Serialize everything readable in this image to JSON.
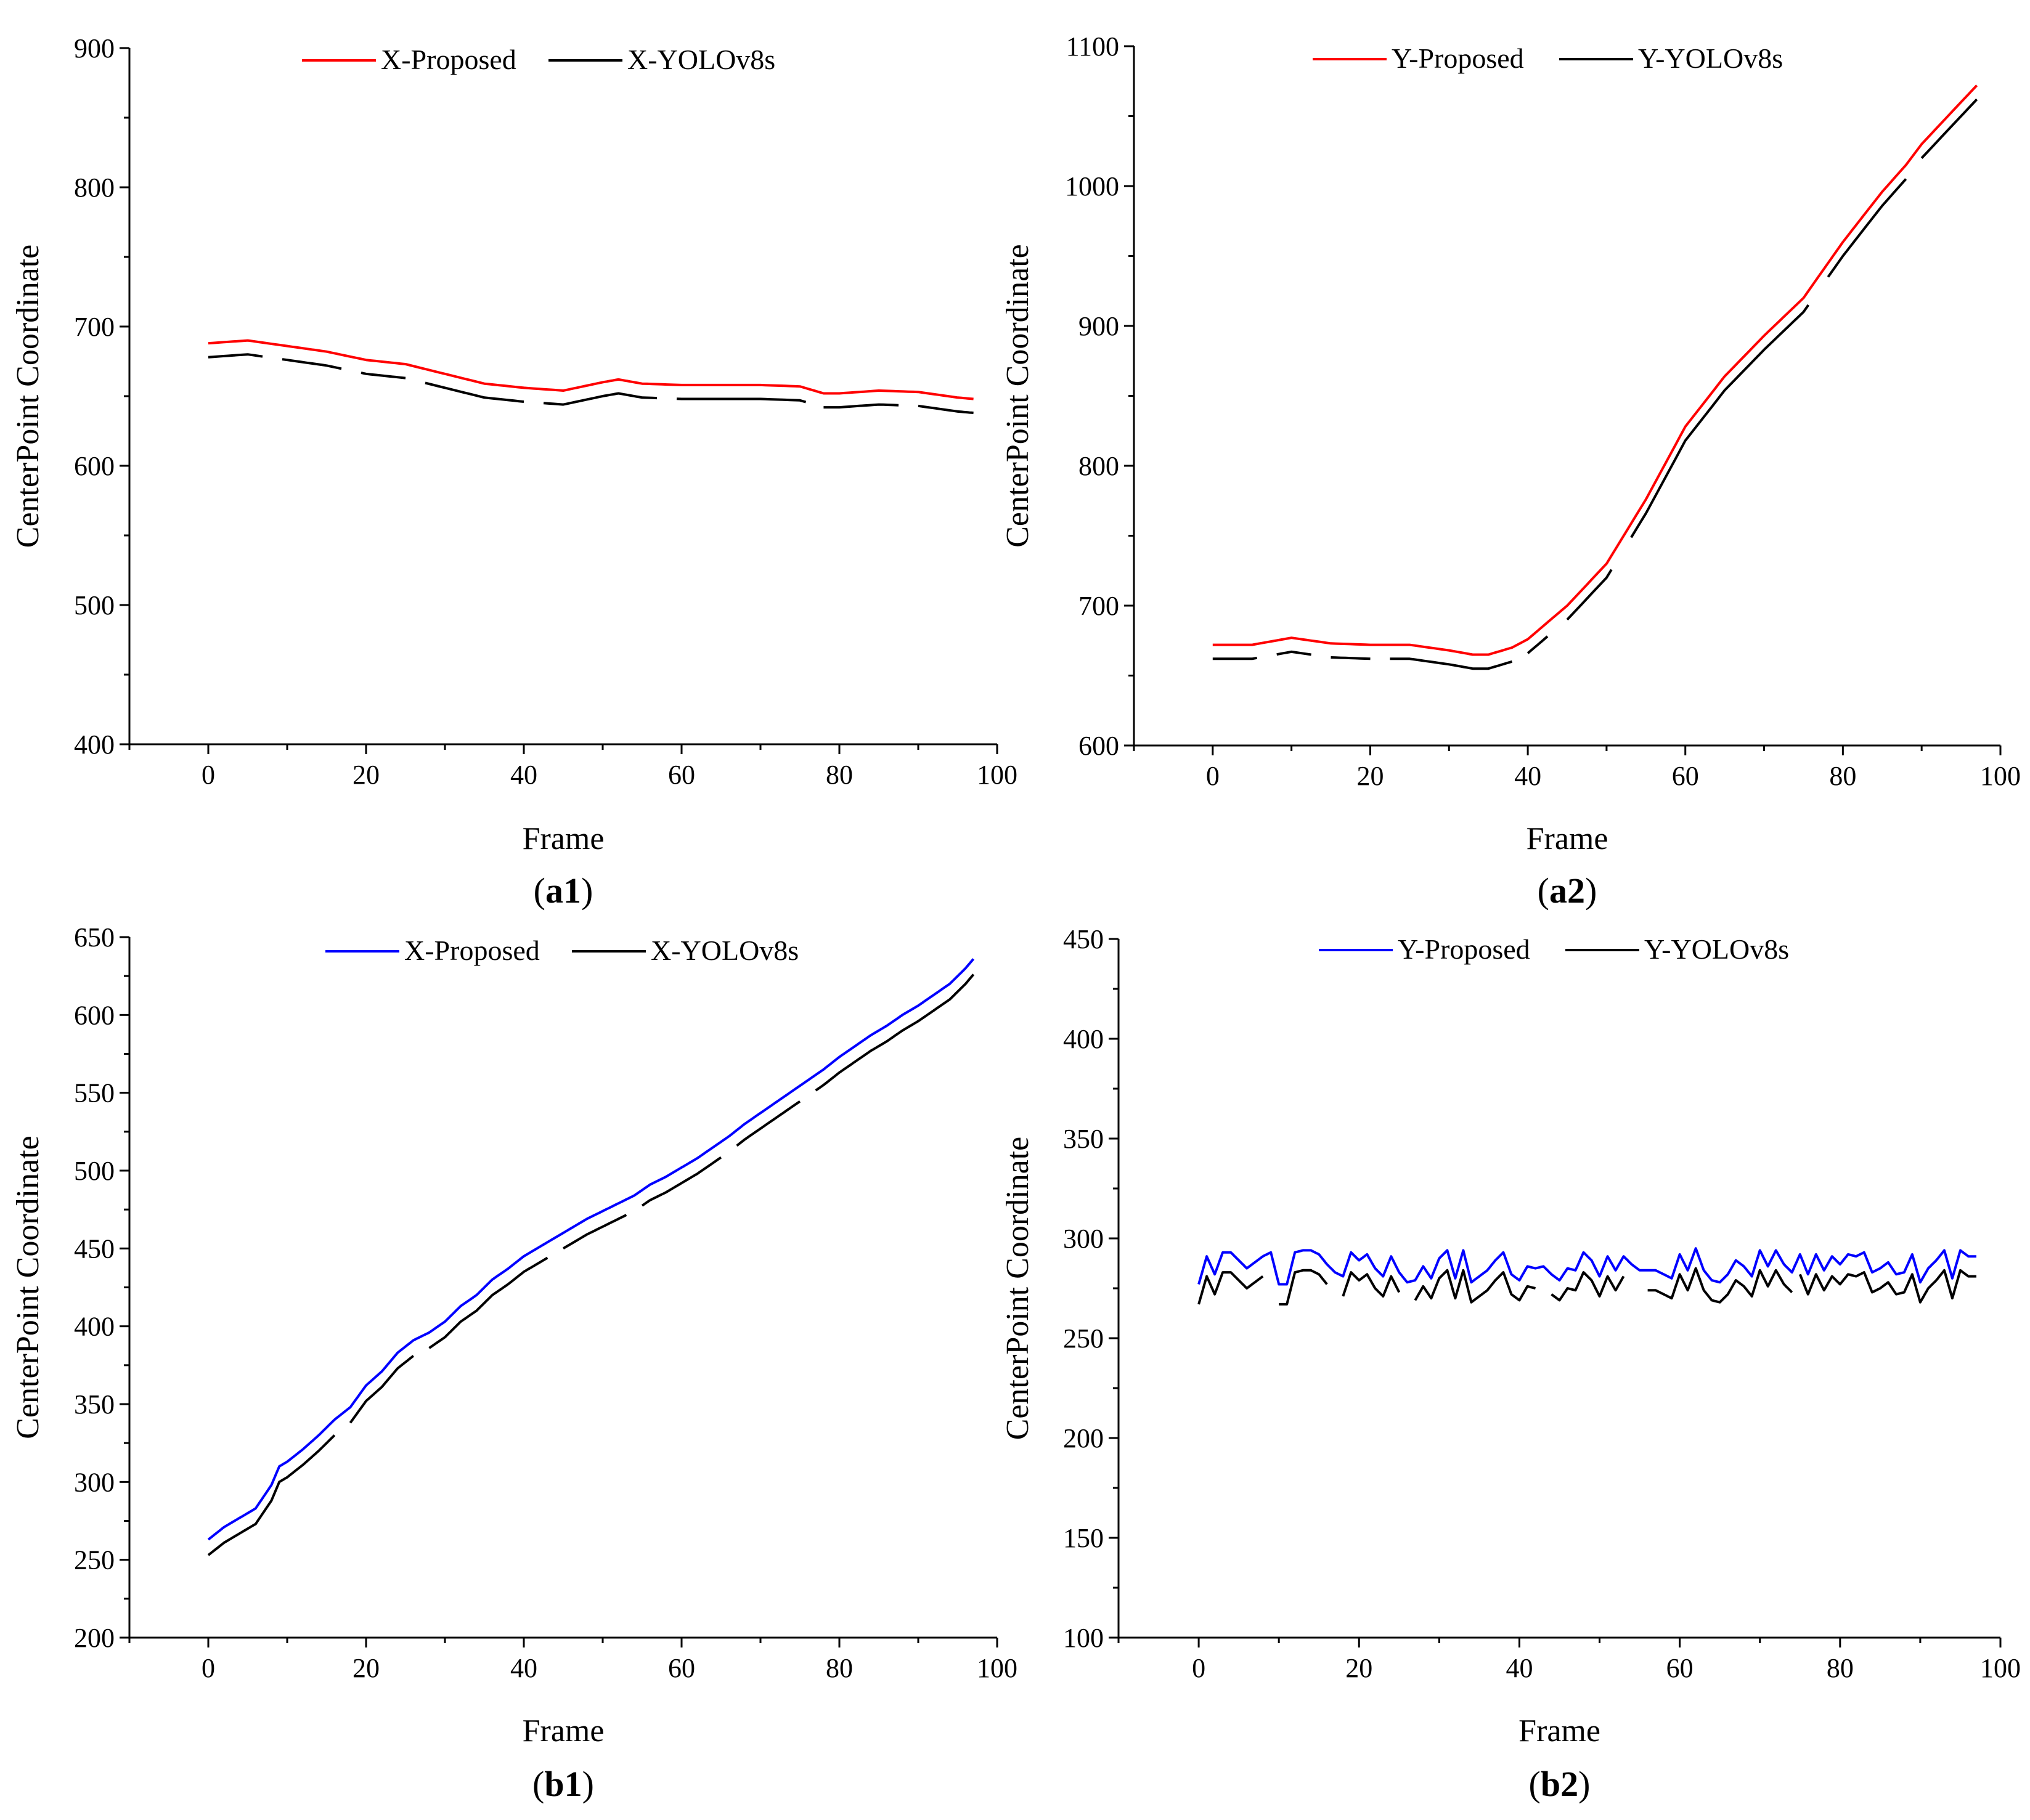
{
  "chart_data": [
    {
      "id": "a1",
      "caption": "a1",
      "type": "line",
      "xlabel": "Frame",
      "ylabel": "CenterPoint Coordinate",
      "xlim": [
        -10,
        100
      ],
      "ylim": [
        400,
        900
      ],
      "xticks": [
        0,
        20,
        40,
        60,
        80,
        100
      ],
      "yticks": [
        400,
        500,
        600,
        700,
        800,
        900
      ],
      "x": [
        0,
        5,
        10,
        15,
        20,
        25,
        30,
        35,
        40,
        45,
        50,
        52,
        55,
        60,
        65,
        70,
        75,
        78,
        80,
        85,
        90,
        95,
        97
      ],
      "series": [
        {
          "name": "X-Proposed",
          "color": "#ff0000",
          "dashed": false,
          "values": [
            688,
            690,
            686,
            682,
            676,
            673,
            666,
            659,
            656,
            654,
            660,
            662,
            659,
            658,
            658,
            658,
            657,
            652,
            652,
            654,
            653,
            649,
            648
          ],
          "gaps": []
        },
        {
          "name": "X-YOLOv8s",
          "color": "#000000",
          "dashed": true,
          "values": [
            678,
            680,
            676,
            672,
            666,
            663,
            656,
            649,
            646,
            644,
            650,
            652,
            649,
            648,
            648,
            648,
            647,
            642,
            642,
            644,
            643,
            639,
            638
          ],
          "gaps": [
            [
              7,
              9
            ],
            [
              17,
              19
            ],
            [
              25,
              27
            ],
            [
              40,
              42
            ],
            [
              57,
              59
            ],
            [
              76,
              78
            ],
            [
              88,
              90
            ]
          ]
        }
      ]
    },
    {
      "id": "a2",
      "caption": "a2",
      "type": "line",
      "xlabel": "Frame",
      "ylabel": "CenterPoint Coordinate",
      "xlim": [
        -10,
        100
      ],
      "ylim": [
        600,
        1100
      ],
      "xticks": [
        0,
        20,
        40,
        60,
        80,
        100
      ],
      "yticks": [
        600,
        700,
        800,
        900,
        1000,
        1100
      ],
      "x": [
        0,
        5,
        10,
        15,
        20,
        25,
        30,
        33,
        35,
        38,
        40,
        45,
        50,
        55,
        60,
        65,
        70,
        75,
        80,
        85,
        88,
        90,
        95,
        97
      ],
      "series": [
        {
          "name": "Y-Proposed",
          "color": "#ff0000",
          "dashed": false,
          "values": [
            672,
            672,
            677,
            673,
            672,
            672,
            668,
            665,
            665,
            670,
            676,
            700,
            730,
            776,
            828,
            864,
            893,
            920,
            960,
            996,
            1015,
            1030,
            1060,
            1072
          ],
          "gaps": []
        },
        {
          "name": "Y-YOLOv8s",
          "color": "#000000",
          "dashed": true,
          "values": [
            662,
            662,
            667,
            663,
            662,
            662,
            658,
            655,
            655,
            660,
            666,
            690,
            720,
            766,
            818,
            854,
            883,
            910,
            950,
            986,
            1005,
            1020,
            1050,
            1062
          ],
          "gaps": [
            [
              6,
              8
            ],
            [
              13,
              15
            ],
            [
              20,
              22
            ],
            [
              38,
              40
            ],
            [
              43,
              45
            ],
            [
              51,
              53
            ],
            [
              76,
              78
            ],
            [
              88,
              90
            ]
          ]
        }
      ]
    },
    {
      "id": "b1",
      "caption": "b1",
      "type": "line",
      "xlabel": "Frame",
      "ylabel": "CenterPoint Coordinate",
      "xlim": [
        -10,
        100
      ],
      "ylim": [
        200,
        650
      ],
      "xticks": [
        0,
        20,
        40,
        60,
        80,
        100
      ],
      "yticks": [
        200,
        250,
        300,
        350,
        400,
        450,
        500,
        550,
        600,
        650
      ],
      "x": [
        0,
        2,
        4,
        6,
        8,
        9,
        10,
        12,
        14,
        16,
        18,
        20,
        22,
        24,
        26,
        28,
        30,
        32,
        34,
        36,
        38,
        40,
        42,
        44,
        46,
        48,
        50,
        52,
        54,
        56,
        58,
        60,
        62,
        64,
        66,
        68,
        70,
        72,
        74,
        76,
        78,
        80,
        82,
        84,
        86,
        88,
        90,
        92,
        94,
        96,
        97
      ],
      "series": [
        {
          "name": "X-Proposed",
          "color": "#0000ff",
          "dashed": false,
          "values": [
            263,
            271,
            277,
            283,
            298,
            310,
            313,
            321,
            330,
            340,
            348,
            362,
            371,
            383,
            391,
            396,
            403,
            413,
            420,
            430,
            437,
            445,
            451,
            457,
            463,
            469,
            474,
            479,
            484,
            491,
            496,
            502,
            508,
            515,
            522,
            530,
            537,
            544,
            551,
            558,
            565,
            573,
            580,
            587,
            593,
            600,
            606,
            613,
            620,
            630,
            636
          ],
          "gaps": []
        },
        {
          "name": "X-YOLOv8s",
          "color": "#000000",
          "dashed": true,
          "values": [
            253,
            261,
            267,
            273,
            288,
            300,
            303,
            311,
            320,
            330,
            338,
            352,
            361,
            373,
            381,
            386,
            393,
            403,
            410,
            420,
            427,
            435,
            441,
            447,
            453,
            459,
            464,
            469,
            474,
            481,
            486,
            492,
            498,
            505,
            512,
            520,
            527,
            534,
            541,
            548,
            555,
            563,
            570,
            577,
            583,
            590,
            596,
            603,
            610,
            620,
            626
          ],
          "gaps": [
            [
              16,
              18
            ],
            [
              26,
              28
            ],
            [
              43,
              45
            ],
            [
              53,
              55
            ],
            [
              65,
              67
            ],
            [
              75,
              77
            ]
          ]
        }
      ]
    },
    {
      "id": "b2",
      "caption": "b2",
      "type": "line",
      "xlabel": "Frame",
      "ylabel": "CenterPoint Coordinate",
      "xlim": [
        -10,
        100
      ],
      "ylim": [
        100,
        450
      ],
      "xticks": [
        0,
        20,
        40,
        60,
        80,
        100
      ],
      "yticks": [
        100,
        150,
        200,
        250,
        300,
        350,
        400,
        450
      ],
      "x": [
        0,
        1,
        2,
        3,
        4,
        5,
        6,
        7,
        8,
        9,
        10,
        11,
        12,
        13,
        14,
        15,
        16,
        17,
        18,
        19,
        20,
        21,
        22,
        23,
        24,
        25,
        26,
        27,
        28,
        29,
        30,
        31,
        32,
        33,
        34,
        35,
        36,
        37,
        38,
        39,
        40,
        41,
        42,
        43,
        44,
        45,
        46,
        47,
        48,
        49,
        50,
        51,
        52,
        53,
        54,
        55,
        56,
        57,
        58,
        59,
        60,
        61,
        62,
        63,
        64,
        65,
        66,
        67,
        68,
        69,
        70,
        71,
        72,
        73,
        74,
        75,
        76,
        77,
        78,
        79,
        80,
        81,
        82,
        83,
        84,
        85,
        86,
        87,
        88,
        89,
        90,
        91,
        92,
        93,
        94,
        95,
        96,
        97
      ],
      "series": [
        {
          "name": "Y-Proposed",
          "color": "#0000ff",
          "dashed": false,
          "values": [
            277,
            291,
            282,
            293,
            293,
            289,
            285,
            288,
            291,
            293,
            277,
            277,
            293,
            294,
            294,
            292,
            287,
            283,
            281,
            293,
            289,
            292,
            285,
            281,
            291,
            283,
            278,
            279,
            286,
            280,
            290,
            294,
            280,
            294,
            278,
            281,
            284,
            289,
            293,
            282,
            279,
            286,
            285,
            286,
            282,
            279,
            285,
            284,
            293,
            289,
            281,
            291,
            284,
            291,
            287,
            284,
            284,
            284,
            282,
            280,
            292,
            284,
            295,
            284,
            279,
            278,
            282,
            289,
            286,
            281,
            294,
            286,
            294,
            287,
            283,
            292,
            282,
            292,
            284,
            291,
            287,
            292,
            291,
            293,
            283,
            285,
            288,
            282,
            283,
            292,
            278,
            285,
            289,
            294,
            280,
            294,
            291,
            291
          ],
          "gaps": []
        },
        {
          "name": "Y-YOLOv8s",
          "color": "#000000",
          "dashed": true,
          "values": [
            267,
            281,
            272,
            283,
            283,
            279,
            275,
            278,
            281,
            283,
            267,
            267,
            283,
            284,
            284,
            282,
            277,
            273,
            271,
            283,
            279,
            282,
            275,
            271,
            281,
            273,
            268,
            269,
            276,
            270,
            280,
            284,
            270,
            284,
            268,
            271,
            274,
            279,
            283,
            272,
            269,
            276,
            275,
            276,
            272,
            269,
            275,
            274,
            283,
            279,
            271,
            281,
            274,
            281,
            277,
            274,
            274,
            274,
            272,
            270,
            282,
            274,
            285,
            274,
            269,
            268,
            272,
            279,
            276,
            271,
            284,
            276,
            284,
            277,
            273,
            282,
            272,
            282,
            274,
            281,
            277,
            282,
            281,
            283,
            273,
            275,
            278,
            272,
            273,
            282,
            268,
            275,
            279,
            284,
            270,
            284,
            281,
            281
          ],
          "gaps": [
            [
              8,
              10
            ],
            [
              16,
              18
            ],
            [
              25,
              27
            ],
            [
              42,
              44
            ],
            [
              53,
              56
            ],
            [
              74,
              75
            ]
          ]
        }
      ]
    }
  ]
}
